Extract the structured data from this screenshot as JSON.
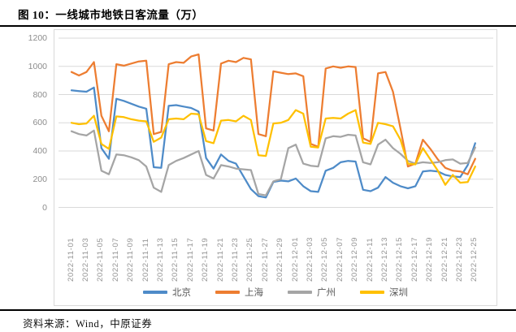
{
  "figure": {
    "title": "图 10：一线城市地铁日客流量（万）",
    "source": "资料来源：Wind，中原证券"
  },
  "chart_data": {
    "type": "line",
    "title": "一线城市地铁日客流量（万）",
    "unit": "万人次",
    "x_start_date": "2022-11-01",
    "x_end_date": "2022-12-25",
    "x_tick_labels": [
      "2022-11-01",
      "2022-11-03",
      "2022-11-05",
      "2022-11-07",
      "2022-11-09",
      "2022-11-11",
      "2022-11-13",
      "2022-11-15",
      "2022-11-17",
      "2022-11-19",
      "2022-11-21",
      "2022-11-23",
      "2022-11-25",
      "2022-11-27",
      "2022-11-29",
      "2022-12-01",
      "2022-12-03",
      "2022-12-05",
      "2022-12-07",
      "2022-12-09",
      "2022-12-11",
      "2022-12-13",
      "2022-12-15",
      "2022-12-17",
      "2022-12-19",
      "2022-12-21",
      "2022-12-23",
      "2022-12-25"
    ],
    "ylim": [
      0,
      1200
    ],
    "y_ticks": [
      0,
      200,
      400,
      600,
      800,
      1000,
      1200
    ],
    "grid": "horizontal",
    "gridline_color": "#d9d9d9",
    "legend_position": "bottom",
    "series": [
      {
        "name": "北京",
        "color": "#4e8bc8",
        "values": [
          830,
          825,
          820,
          850,
          420,
          345,
          770,
          755,
          735,
          715,
          700,
          285,
          280,
          720,
          725,
          715,
          705,
          680,
          350,
          275,
          375,
          330,
          310,
          220,
          130,
          80,
          70,
          180,
          190,
          185,
          205,
          150,
          115,
          110,
          260,
          280,
          320,
          330,
          325,
          125,
          115,
          140,
          215,
          175,
          150,
          135,
          150,
          255,
          260,
          255,
          230,
          220,
          215,
          300,
          455
        ]
      },
      {
        "name": "上海",
        "color": "#ed7d31",
        "values": [
          960,
          935,
          960,
          1030,
          650,
          540,
          1015,
          1005,
          1020,
          1035,
          1040,
          520,
          535,
          1015,
          1030,
          1025,
          1070,
          1085,
          560,
          545,
          1020,
          1040,
          1030,
          1060,
          1050,
          520,
          505,
          965,
          955,
          945,
          950,
          930,
          450,
          430,
          985,
          1000,
          990,
          1000,
          995,
          490,
          465,
          950,
          960,
          820,
          560,
          290,
          310,
          480,
          415,
          340,
          280,
          260,
          255,
          235,
          345
        ]
      },
      {
        "name": "广州",
        "color": "#a5a5a5",
        "values": [
          540,
          520,
          510,
          545,
          260,
          235,
          375,
          370,
          355,
          335,
          290,
          140,
          110,
          300,
          330,
          350,
          375,
          400,
          230,
          205,
          300,
          290,
          275,
          270,
          265,
          95,
          85,
          185,
          200,
          420,
          445,
          310,
          295,
          290,
          490,
          505,
          500,
          515,
          510,
          320,
          305,
          445,
          480,
          420,
          380,
          330,
          310,
          320,
          315,
          320,
          335,
          340,
          310,
          315,
          425
        ]
      },
      {
        "name": "深圳",
        "color": "#ffc000",
        "values": [
          600,
          590,
          595,
          650,
          450,
          415,
          645,
          640,
          625,
          615,
          610,
          465,
          495,
          625,
          630,
          625,
          665,
          660,
          470,
          455,
          615,
          620,
          610,
          650,
          620,
          370,
          365,
          595,
          600,
          620,
          690,
          665,
          430,
          425,
          630,
          635,
          630,
          665,
          690,
          460,
          450,
          600,
          590,
          575,
          480,
          310,
          305,
          420,
          340,
          260,
          160,
          230,
          175,
          180,
          290
        ]
      }
    ]
  }
}
